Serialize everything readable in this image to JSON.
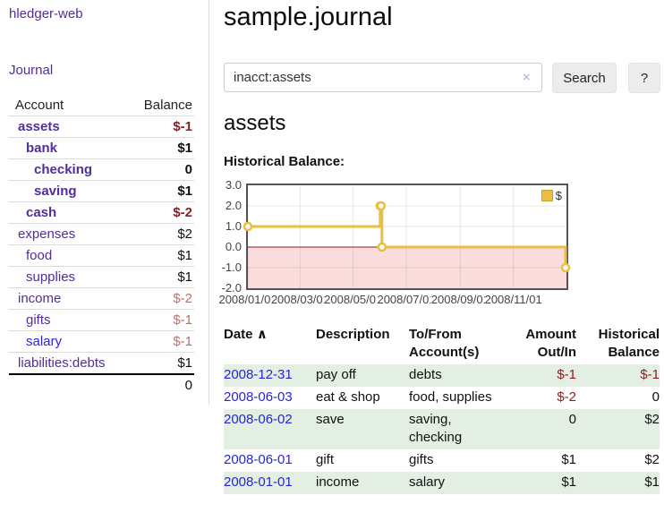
{
  "app": {
    "brand": "hledger-web",
    "nav": {
      "journal": "Journal"
    }
  },
  "icons": {
    "sort_up": "∧",
    "clear_search": "×",
    "legend_swatch": "gold-square"
  },
  "colors": {
    "link_purple": "#532c9e",
    "link_blue": "#2626d9",
    "negative_dark": "#8f1d1d",
    "negative_light": "#c0706a",
    "row_green": "#e3efe3",
    "series_gold": "#e8bf3e"
  },
  "sidebar": {
    "header": {
      "account": "Account",
      "balance": "Balance"
    },
    "accounts": [
      {
        "name": "assets",
        "balance": "$-1"
      },
      {
        "name": "bank",
        "balance": "$1"
      },
      {
        "name": "checking",
        "balance": "0"
      },
      {
        "name": "saving",
        "balance": "$1"
      },
      {
        "name": "cash",
        "balance": "$-2"
      },
      {
        "name": "expenses",
        "balance": "$2"
      },
      {
        "name": "food",
        "balance": "$1"
      },
      {
        "name": "supplies",
        "balance": "$1"
      },
      {
        "name": "income",
        "balance": "$-2"
      },
      {
        "name": "gifts",
        "balance": "$-1"
      },
      {
        "name": "salary",
        "balance": "$-1"
      },
      {
        "name": "liabilities:debts",
        "balance": "$1"
      }
    ],
    "total": "0"
  },
  "main": {
    "title": "sample.journal",
    "search": {
      "value": "inacct:assets",
      "button_label": "Search",
      "help_label": "?"
    },
    "account_heading": "assets",
    "chart_title": "Historical Balance:"
  },
  "chart_data": {
    "type": "line",
    "style": "steps",
    "title": "Historical Balance",
    "series": [
      {
        "name": "$",
        "color": "#e8bf3e",
        "points": [
          [
            "2008-01-01",
            1
          ],
          [
            "2008-06-01",
            2
          ],
          [
            "2008-06-02",
            2
          ],
          [
            "2008-06-03",
            0
          ],
          [
            "2008-12-31",
            -1
          ]
        ]
      }
    ],
    "x_range": [
      "2008-01-01",
      "2009-01-01"
    ],
    "ylim": [
      -2,
      3
    ],
    "x_ticks": [
      "2008/01/01",
      "2008/03/01",
      "2008/05/01",
      "2008/07/01",
      "2008/09/01",
      "2008/11/01"
    ],
    "y_ticks": [
      "3.0",
      "2.0",
      "1.0",
      "0.0",
      "-1.0",
      "-2.0"
    ],
    "legend": {
      "label": "$",
      "position": "top-right"
    },
    "grid": true,
    "negative_region_color": "#fbdcdc",
    "zero_line_color": "#8f1d1d"
  },
  "register": {
    "columns": {
      "date": "Date",
      "description": "Description",
      "accounts": "To/From Account(s)",
      "amount": "Amount Out/In",
      "balance": "Historical Balance"
    },
    "rows": [
      {
        "date": "2008-12-31",
        "description": "pay off",
        "accounts": "debts",
        "amount": "$-1",
        "balance": "$-1"
      },
      {
        "date": "2008-06-03",
        "description": "eat & shop",
        "accounts": "food, supplies",
        "amount": "$-2",
        "balance": "0"
      },
      {
        "date": "2008-06-02",
        "description": "save",
        "accounts": "saving, checking",
        "amount": "0",
        "balance": "$2"
      },
      {
        "date": "2008-06-01",
        "description": "gift",
        "accounts": "gifts",
        "amount": "$1",
        "balance": "$2"
      },
      {
        "date": "2008-01-01",
        "description": "income",
        "accounts": "salary",
        "amount": "$1",
        "balance": "$1"
      }
    ]
  }
}
